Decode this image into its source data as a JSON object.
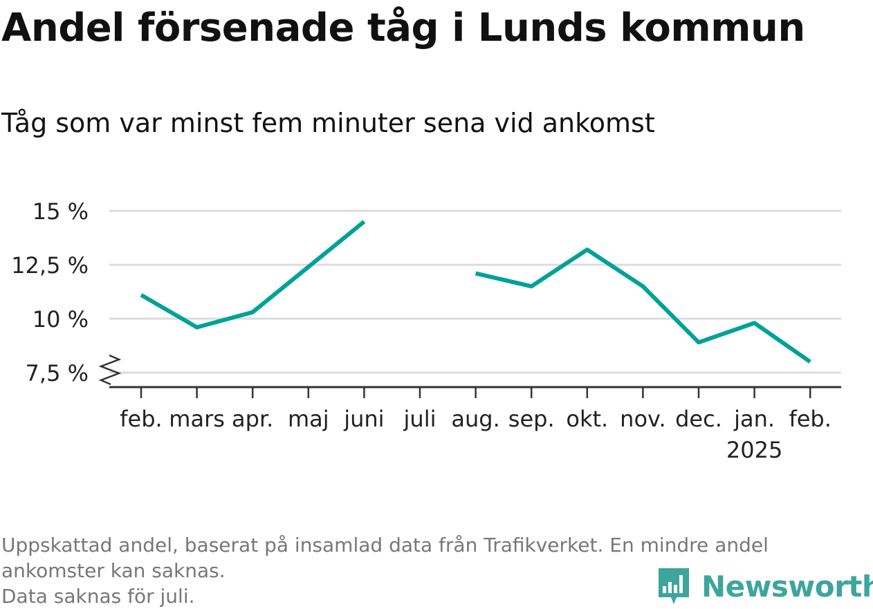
{
  "title": "Andel försenade tåg i Lunds kommun",
  "subtitle": "Tåg som var minst fem minuter sena vid ankomst",
  "footnote": {
    "line1": "Uppskattad andel, baserat på insamlad data från Trafikverket. En mindre andel",
    "line2": "ankomster kan saknas.",
    "line3": "Data saknas för juli."
  },
  "logo": {
    "text": "Newsworthy",
    "color": "#3ea59c"
  },
  "chart_data": {
    "type": "line",
    "categories": [
      "feb.",
      "mars",
      "apr.",
      "maj",
      "juni",
      "juli",
      "aug.",
      "sep.",
      "okt.",
      "nov.",
      "dec.",
      "jan.",
      "feb."
    ],
    "year_label": "2025",
    "series": [
      {
        "values": [
          11.1,
          9.6,
          10.3,
          12.4,
          14.5,
          null,
          12.1,
          11.5,
          13.2,
          11.5,
          8.9,
          9.8,
          8.0
        ],
        "color": "#00a199"
      }
    ],
    "yticks": [
      7.5,
      10,
      12.5,
      15
    ],
    "ytick_labels": [
      "7,5 %",
      "10 %",
      "12,5 %",
      "15 %"
    ],
    "ylim": [
      7.5,
      15
    ],
    "grid": true,
    "axis_break": true
  }
}
